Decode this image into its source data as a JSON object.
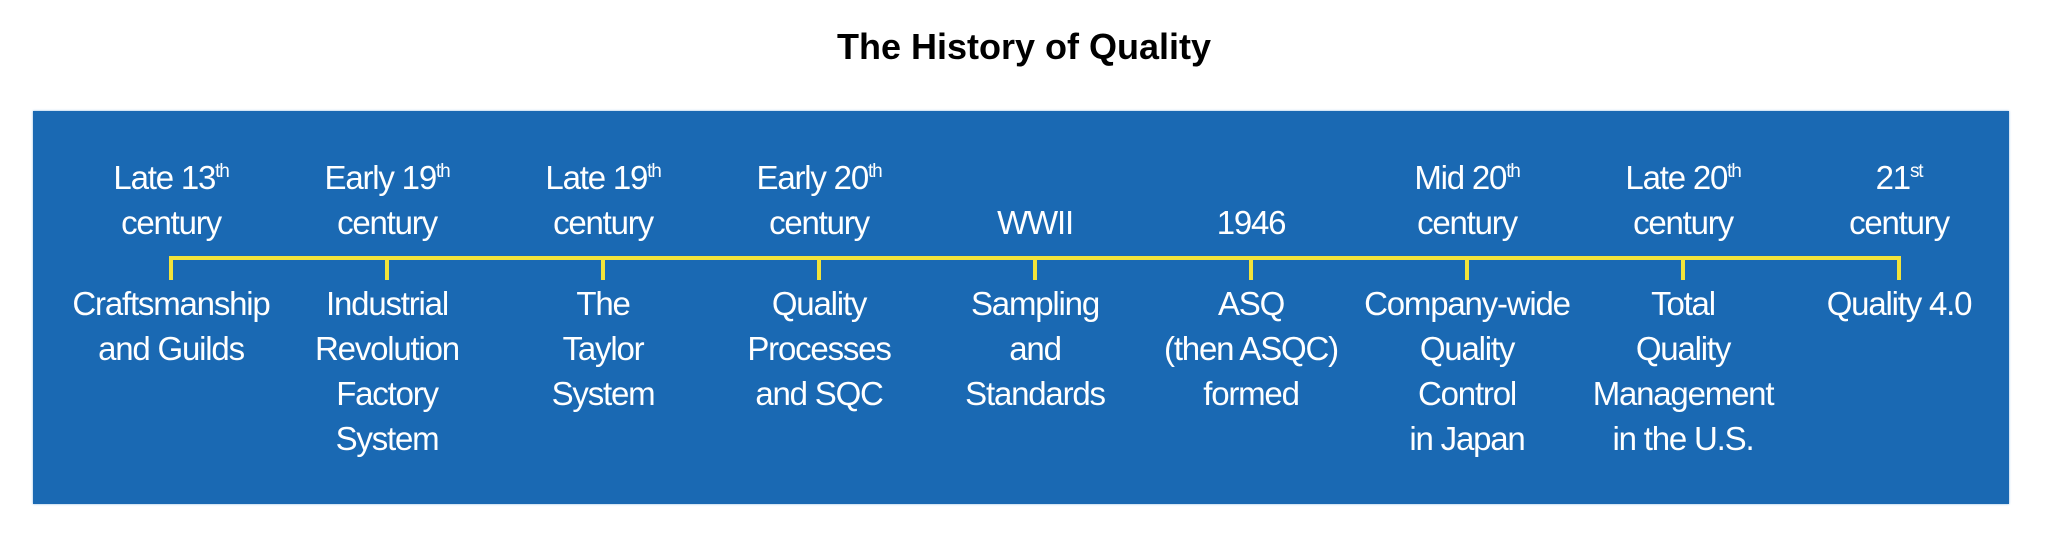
{
  "title": "The History of Quality",
  "colors": {
    "panel": "#1a69b3",
    "timeline": "#f2e33a",
    "text": "#ffffff"
  },
  "events": [
    {
      "period": "Late 13",
      "sup": "th",
      "period2": "century",
      "lines": [
        "Craftsmanship",
        "and Guilds"
      ]
    },
    {
      "period": "Early 19",
      "sup": "th",
      "period2": "century",
      "lines": [
        "Industrial",
        "Revolution",
        "Factory",
        "System"
      ]
    },
    {
      "period": "Late 19",
      "sup": "th",
      "period2": "century",
      "lines": [
        "The",
        "Taylor",
        "System"
      ]
    },
    {
      "period": "Early 20",
      "sup": "th",
      "period2": "century",
      "lines": [
        "Quality",
        "Processes",
        "and SQC"
      ]
    },
    {
      "period": "WWII",
      "sup": "",
      "period2": "",
      "lines": [
        "Sampling",
        "and",
        "Standards"
      ]
    },
    {
      "period": "1946",
      "sup": "",
      "period2": "",
      "lines": [
        "ASQ",
        "(then ASQC)",
        "formed"
      ]
    },
    {
      "period": "Mid 20",
      "sup": "th",
      "period2": "century",
      "lines": [
        "Company-wide",
        "Quality",
        "Control",
        "in Japan"
      ]
    },
    {
      "period": "Late 20",
      "sup": "th",
      "period2": "century",
      "lines": [
        "Total",
        "Quality",
        "Management",
        "in the U.S."
      ]
    },
    {
      "period": "21",
      "sup": "st",
      "period2": "century",
      "lines": [
        "Quality 4.0"
      ]
    }
  ]
}
